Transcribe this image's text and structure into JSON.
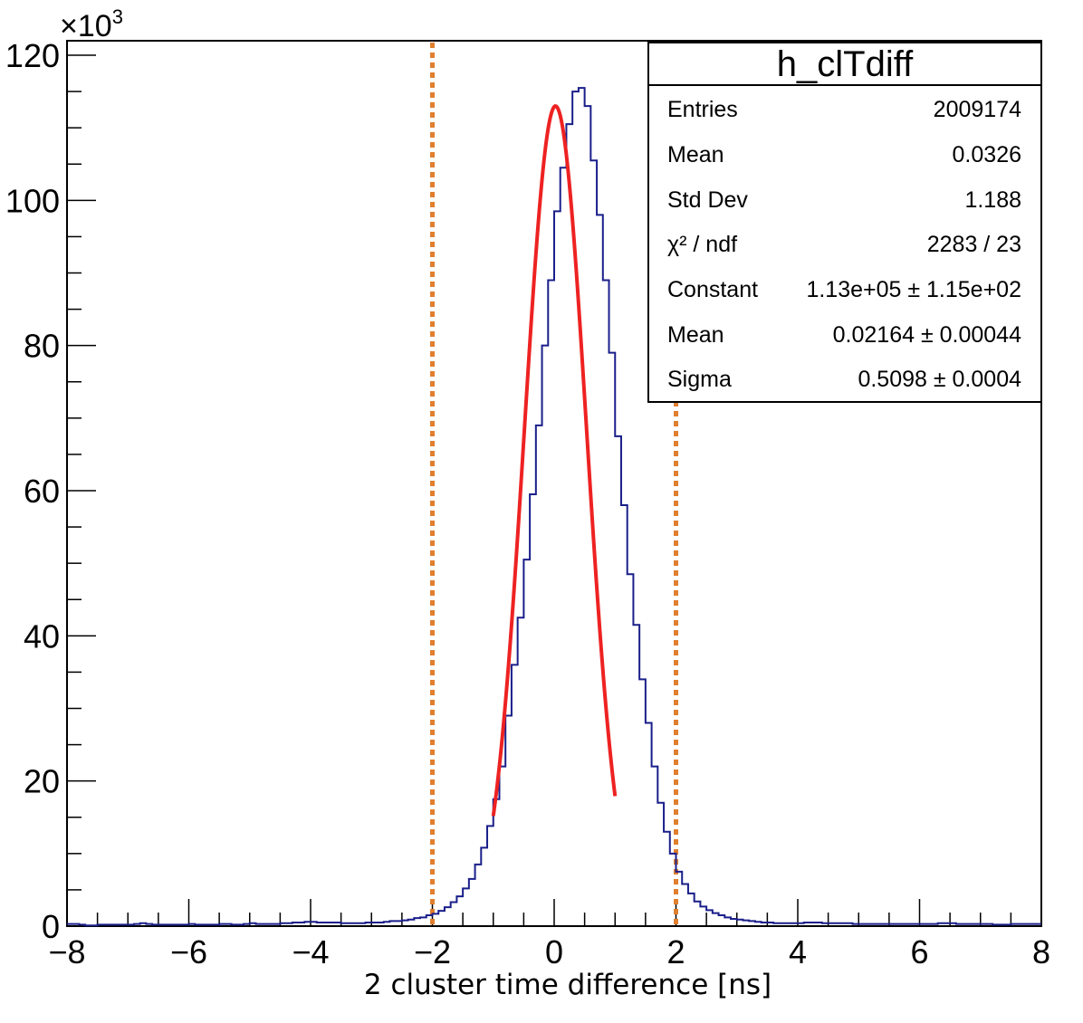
{
  "chart_data": {
    "type": "histogram",
    "title": "",
    "xlabel": "2 cluster time difference [ns]",
    "ylabel": "",
    "y_multiplier": {
      "base": "×10",
      "exponent": "3"
    },
    "xlim": [
      -8,
      8
    ],
    "ylim": [
      0,
      120
    ],
    "x_ticks": [
      -8,
      -6,
      -4,
      -2,
      0,
      2,
      4,
      6,
      8
    ],
    "x_tick_labels": [
      "−8",
      "−6",
      "−4",
      "−2",
      "0",
      "2",
      "4",
      "6",
      "8"
    ],
    "y_ticks": [
      0,
      20,
      40,
      60,
      80,
      100,
      120
    ],
    "y_tick_labels": [
      "0",
      "20",
      "40",
      "60",
      "80",
      "100",
      "120"
    ],
    "histogram": {
      "name": "h_clTdiff",
      "color": "#1a1f8a",
      "bin_width": 0.1,
      "bin_low_edges": [
        -8.0,
        -7.9,
        -7.8,
        -7.7,
        -7.6,
        -7.5,
        -7.4,
        -7.3,
        -7.2,
        -7.1,
        -7.0,
        -6.9,
        -6.8,
        -6.7,
        -6.6,
        -6.5,
        -6.4,
        -6.3,
        -6.2,
        -6.1,
        -6.0,
        -5.9,
        -5.8,
        -5.7,
        -5.6,
        -5.5,
        -5.4,
        -5.3,
        -5.2,
        -5.1,
        -5.0,
        -4.9,
        -4.8,
        -4.7,
        -4.6,
        -4.5,
        -4.4,
        -4.3,
        -4.2,
        -4.1,
        -4.0,
        -3.9,
        -3.8,
        -3.7,
        -3.6,
        -3.5,
        -3.4,
        -3.3,
        -3.2,
        -3.1,
        -3.0,
        -2.9,
        -2.8,
        -2.7,
        -2.6,
        -2.5,
        -2.4,
        -2.3,
        -2.2,
        -2.1,
        -2.0,
        -1.9,
        -1.8,
        -1.7,
        -1.6,
        -1.5,
        -1.4,
        -1.3,
        -1.2,
        -1.1,
        -1.0,
        -0.9,
        -0.8,
        -0.7,
        -0.6,
        -0.5,
        -0.4,
        -0.3,
        -0.2,
        -0.1,
        0.0,
        0.1,
        0.2,
        0.3,
        0.4,
        0.5,
        0.6,
        0.7,
        0.8,
        0.9,
        1.0,
        1.1,
        1.2,
        1.3,
        1.4,
        1.5,
        1.6,
        1.7,
        1.8,
        1.9,
        2.0,
        2.1,
        2.2,
        2.3,
        2.4,
        2.5,
        2.6,
        2.7,
        2.8,
        2.9,
        3.0,
        3.1,
        3.2,
        3.3,
        3.4,
        3.5,
        3.6,
        3.7,
        3.8,
        3.9,
        4.0,
        4.1,
        4.2,
        4.3,
        4.4,
        4.5,
        4.6,
        4.7,
        4.8,
        4.9,
        5.0,
        5.1,
        5.2,
        5.3,
        5.4,
        5.5,
        5.6,
        5.7,
        5.8,
        5.9,
        6.0,
        6.1,
        6.2,
        6.3,
        6.4,
        6.5,
        6.6,
        6.7,
        6.8,
        6.9,
        7.0,
        7.1,
        7.2,
        7.3,
        7.4,
        7.5,
        7.6,
        7.7,
        7.8,
        7.9
      ],
      "counts": [
        0.3,
        0.3,
        0.2,
        0.1,
        0.1,
        0.2,
        0.2,
        0.2,
        0.2,
        0.2,
        0.2,
        0.3,
        0.4,
        0.3,
        0.2,
        0.2,
        0.2,
        0.2,
        0.2,
        0.2,
        0.3,
        0.2,
        0.2,
        0.2,
        0.2,
        0.3,
        0.3,
        0.2,
        0.2,
        0.3,
        0.4,
        0.3,
        0.3,
        0.3,
        0.3,
        0.4,
        0.4,
        0.5,
        0.5,
        0.6,
        0.6,
        0.5,
        0.5,
        0.5,
        0.5,
        0.4,
        0.4,
        0.4,
        0.4,
        0.5,
        0.5,
        0.5,
        0.6,
        0.7,
        0.7,
        0.8,
        0.9,
        1.1,
        1.2,
        1.5,
        1.7,
        2.1,
        2.6,
        3.3,
        4.1,
        5.2,
        6.5,
        8.5,
        10.8,
        13.8,
        17.5,
        22.0,
        29.0,
        36.0,
        42.5,
        50.5,
        59.5,
        69.0,
        80.0,
        89.0,
        98.5,
        104.5,
        110.5,
        115.0,
        115.5,
        113.0,
        105.5,
        98.0,
        89.0,
        79.0,
        67.5,
        58.0,
        48.5,
        41.5,
        34.0,
        28.0,
        22.0,
        17.0,
        13.0,
        10.0,
        7.5,
        5.8,
        4.5,
        3.4,
        2.7,
        2.2,
        1.8,
        1.5,
        1.2,
        1.0,
        0.9,
        0.8,
        0.7,
        0.6,
        0.5,
        0.5,
        0.4,
        0.4,
        0.4,
        0.4,
        0.4,
        0.5,
        0.5,
        0.5,
        0.4,
        0.4,
        0.4,
        0.4,
        0.4,
        0.3,
        0.3,
        0.3,
        0.3,
        0.3,
        0.3,
        0.3,
        0.3,
        0.3,
        0.3,
        0.3,
        0.3,
        0.3,
        0.3,
        0.4,
        0.4,
        0.4,
        0.3,
        0.3,
        0.3,
        0.3,
        0.3,
        0.3,
        0.2,
        0.2,
        0.2,
        0.3,
        0.3,
        0.3,
        0.3,
        0.3
      ]
    },
    "fit": {
      "function": "gaus",
      "color": "#ee2222",
      "x_range": [
        -1.0,
        1.0
      ],
      "constant_e3": 113.0,
      "mean": 0.02164,
      "sigma": 0.5098
    },
    "vertical_lines": {
      "x": [
        -2,
        2
      ],
      "color": "#e07f2e",
      "style": "dotted"
    },
    "stats_box": {
      "title": "h_clTdiff",
      "placement": "top-right",
      "rows": [
        {
          "label": "Entries",
          "value": "2009174"
        },
        {
          "label": "Mean",
          "value": "0.0326"
        },
        {
          "label": "Std Dev",
          "value": "1.188"
        },
        {
          "label": "χ² / ndf",
          "value": "2283 / 23"
        },
        {
          "label": "Constant",
          "value": "1.13e+05 ± 1.15e+02"
        },
        {
          "label": "Mean",
          "value": "0.02164 ± 0.00044"
        },
        {
          "label": "Sigma",
          "value": "0.5098 ± 0.0004"
        }
      ]
    },
    "grid": false
  }
}
